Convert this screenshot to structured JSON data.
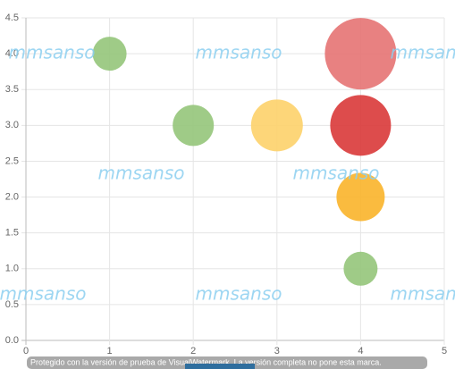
{
  "chart_data": {
    "type": "bubble",
    "x": [
      1,
      2,
      3,
      4,
      4,
      4,
      4
    ],
    "values": [
      4,
      3,
      3,
      4,
      3,
      2,
      1
    ],
    "sizes": [
      19,
      23,
      29,
      40,
      34,
      27,
      19
    ],
    "colors": [
      "#95c57a",
      "#95c57a",
      "#fdd16a",
      "#e67373",
      "#d93838",
      "#f9b42a",
      "#95c57a"
    ],
    "xlim": [
      0,
      5
    ],
    "xticks": [
      0,
      1,
      2,
      3,
      4,
      5
    ],
    "ylim": [
      0,
      4.5
    ],
    "yticks": [
      {
        "value": 0,
        "label": "0.0"
      },
      0.5,
      {
        "value": 1,
        "label": "1.0"
      },
      1.5,
      {
        "value": 2,
        "label": "2.0"
      },
      2.5,
      {
        "value": 3,
        "label": "3.0"
      },
      3.5,
      {
        "value": 4,
        "label": "4.0"
      },
      4.5
    ],
    "grid": true
  },
  "watermark": "mmsanso",
  "footer_note": "Protegido con la versión de prueba de VisualWatermark. La versión completa no pone esta marca."
}
